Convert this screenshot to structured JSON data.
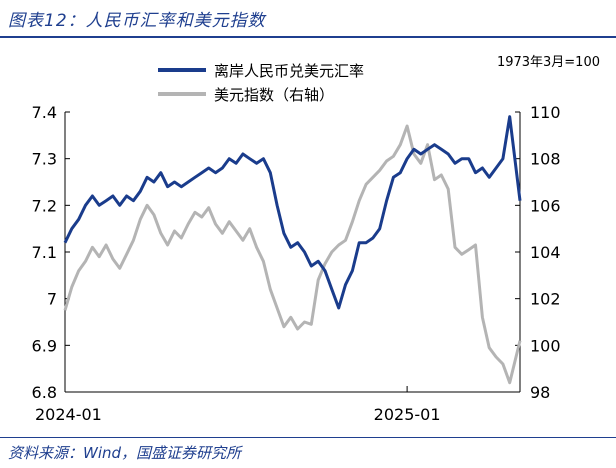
{
  "header": {
    "title": "图表12：人民币汇率和美元指数"
  },
  "footer": {
    "source": "资料来源：Wind，国盛证券研究所"
  },
  "chart_data": {
    "type": "line",
    "note": "1973年3月=100",
    "legend_position": "top-center",
    "x_tick_labels": [
      "2024-01",
      "2025-01"
    ],
    "x_range": [
      "2024-01",
      "2025-04"
    ],
    "left_axis": {
      "ticks": [
        "7.4",
        "7.3",
        "7.2",
        "7.1",
        "7",
        "6.9",
        "6.8"
      ],
      "range": [
        6.8,
        7.4
      ]
    },
    "right_axis": {
      "ticks": [
        "110",
        "108",
        "106",
        "104",
        "102",
        "100",
        "98"
      ],
      "range": [
        98,
        110
      ]
    },
    "series": [
      {
        "name": "离岸人民币兑美元汇率",
        "axis": "left",
        "color": "#1a3c8c",
        "x": [
          2024.0,
          2024.02,
          2024.04,
          2024.06,
          2024.08,
          2024.1,
          2024.12,
          2024.14,
          2024.16,
          2024.18,
          2024.2,
          2024.22,
          2024.24,
          2024.26,
          2024.28,
          2024.3,
          2024.32,
          2024.34,
          2024.36,
          2024.38,
          2024.4,
          2024.42,
          2024.44,
          2024.46,
          2024.48,
          2024.5,
          2024.52,
          2024.54,
          2024.56,
          2024.58,
          2024.6,
          2024.62,
          2024.64,
          2024.66,
          2024.68,
          2024.7,
          2024.72,
          2024.74,
          2024.76,
          2024.78,
          2024.8,
          2024.82,
          2024.84,
          2024.86,
          2024.88,
          2024.9,
          2024.92,
          2024.94,
          2024.96,
          2024.98,
          2025.0,
          2025.02,
          2025.04,
          2025.06,
          2025.08,
          2025.1,
          2025.12,
          2025.14,
          2025.16,
          2025.18,
          2025.2,
          2025.22,
          2025.24,
          2025.26,
          2025.28,
          2025.3,
          2025.33
        ],
        "values": [
          7.12,
          7.15,
          7.17,
          7.2,
          7.22,
          7.2,
          7.21,
          7.22,
          7.2,
          7.22,
          7.21,
          7.23,
          7.26,
          7.25,
          7.27,
          7.24,
          7.25,
          7.24,
          7.25,
          7.26,
          7.27,
          7.28,
          7.27,
          7.28,
          7.3,
          7.29,
          7.31,
          7.3,
          7.29,
          7.3,
          7.27,
          7.2,
          7.14,
          7.11,
          7.12,
          7.1,
          7.07,
          7.08,
          7.06,
          7.02,
          6.98,
          7.03,
          7.06,
          7.12,
          7.12,
          7.13,
          7.15,
          7.21,
          7.26,
          7.27,
          7.3,
          7.32,
          7.31,
          7.32,
          7.33,
          7.32,
          7.31,
          7.29,
          7.3,
          7.3,
          7.27,
          7.28,
          7.26,
          7.28,
          7.3,
          7.39,
          7.21
        ]
      },
      {
        "name": "美元指数（右轴）",
        "axis": "right",
        "color": "#b4b4b4",
        "x": [
          2024.0,
          2024.02,
          2024.04,
          2024.06,
          2024.08,
          2024.1,
          2024.12,
          2024.14,
          2024.16,
          2024.18,
          2024.2,
          2024.22,
          2024.24,
          2024.26,
          2024.28,
          2024.3,
          2024.32,
          2024.34,
          2024.36,
          2024.38,
          2024.4,
          2024.42,
          2024.44,
          2024.46,
          2024.48,
          2024.5,
          2024.52,
          2024.54,
          2024.56,
          2024.58,
          2024.6,
          2024.62,
          2024.64,
          2024.66,
          2024.68,
          2024.7,
          2024.72,
          2024.74,
          2024.76,
          2024.78,
          2024.8,
          2024.82,
          2024.84,
          2024.86,
          2024.88,
          2024.9,
          2024.92,
          2024.94,
          2024.96,
          2024.98,
          2025.0,
          2025.02,
          2025.04,
          2025.06,
          2025.08,
          2025.1,
          2025.12,
          2025.14,
          2025.16,
          2025.18,
          2025.2,
          2025.22,
          2025.24,
          2025.26,
          2025.28,
          2025.3,
          2025.33
        ],
        "values": [
          101.5,
          102.5,
          103.2,
          103.6,
          104.2,
          103.8,
          104.3,
          103.7,
          103.3,
          103.9,
          104.5,
          105.4,
          106.0,
          105.6,
          104.8,
          104.3,
          104.9,
          104.6,
          105.2,
          105.7,
          105.5,
          105.9,
          105.2,
          104.8,
          105.3,
          104.9,
          104.5,
          105.0,
          104.2,
          103.6,
          102.4,
          101.6,
          100.8,
          101.2,
          100.7,
          101.0,
          100.9,
          102.8,
          103.5,
          104.0,
          104.3,
          104.5,
          105.3,
          106.2,
          106.9,
          107.2,
          107.5,
          107.9,
          108.1,
          108.6,
          109.4,
          108.2,
          107.8,
          108.6,
          107.1,
          107.3,
          106.7,
          104.2,
          103.9,
          104.1,
          104.3,
          101.2,
          99.9,
          99.5,
          99.2,
          98.4,
          100.2
        ]
      }
    ]
  }
}
